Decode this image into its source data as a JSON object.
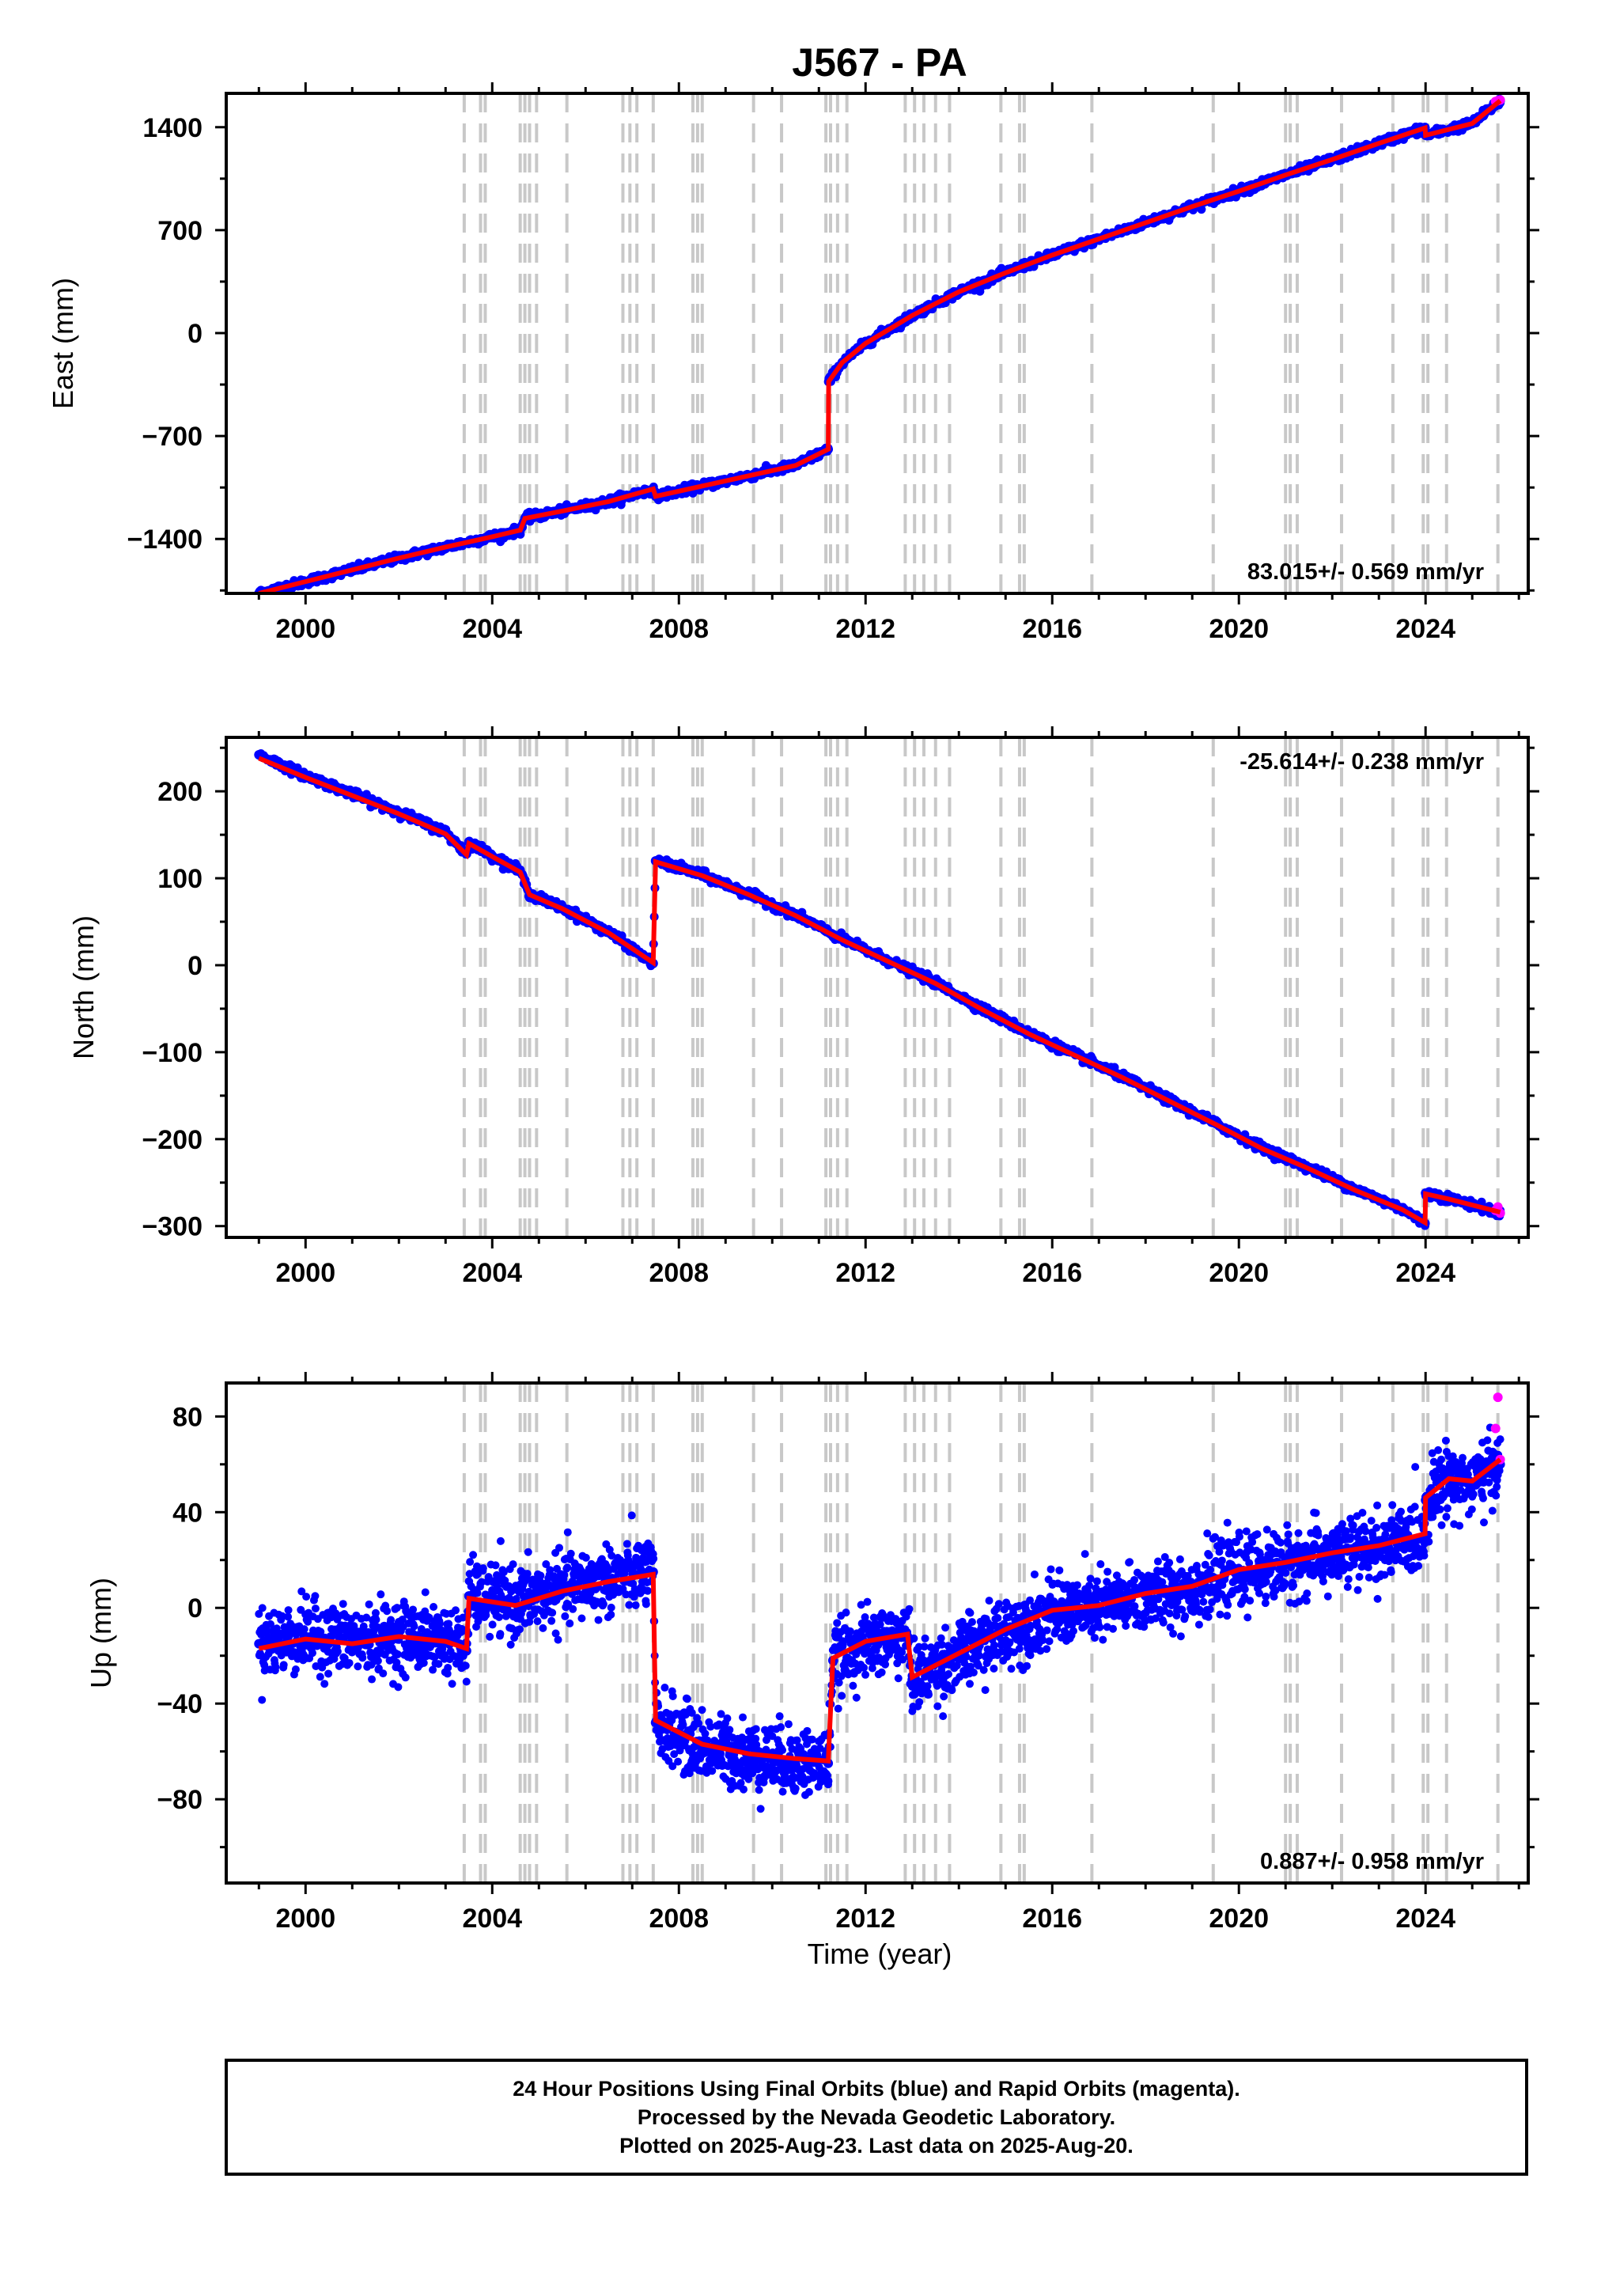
{
  "title": "J567 - PA",
  "xlabel": "Time (year)",
  "footer": {
    "line1": "24 Hour Positions Using Final Orbits (blue) and Rapid Orbits (magenta).",
    "line2": "Processed by the Nevada Geodetic Laboratory.",
    "line3": "Plotted on 2025-Aug-23. Last data on 2025-Aug-20."
  },
  "colors": {
    "final_orbits": "#0000ff",
    "rapid_orbits": "#ff00ff",
    "model": "#ff0000",
    "event_lines": "#c8c8c8"
  },
  "chart_data": [
    {
      "type": "scatter",
      "panel": "east",
      "ylabel": "East (mm)",
      "rate_label": "83.015+/- 0.569 mm/yr",
      "rate_position": "bottom-right",
      "xlim": [
        1998.3,
        2026.2
      ],
      "ylim": [
        -1770,
        1630
      ],
      "xticks": [
        2000,
        2004,
        2008,
        2012,
        2016,
        2020,
        2024
      ],
      "yticks": [
        -1400,
        -700,
        0,
        700,
        1400
      ],
      "ytick_labels": [
        "−1400",
        "−700",
        "0",
        "700",
        "1400"
      ],
      "series": [
        {
          "name": "",
          "color": "#0000ff",
          "x": [
            1999.0,
            2000.0,
            2001.0,
            2002.0,
            2003.0,
            2004.0,
            2004.6,
            2004.7,
            2005.5,
            2006.5,
            2007.45,
            2007.5,
            2008.5,
            2009.5,
            2010.5,
            2011.2,
            2011.21,
            2011.5,
            2012.0,
            2013.0,
            2014.0,
            2015.0,
            2016.0,
            2017.0,
            2018.0,
            2019.0,
            2020.0,
            2021.0,
            2022.0,
            2023.0,
            2023.99,
            2024.0,
            2025.0,
            2025.6
          ],
          "y": [
            -1770,
            -1690,
            -1610,
            -1530,
            -1455,
            -1385,
            -1340,
            -1260,
            -1210,
            -1145,
            -1060,
            -1110,
            -1040,
            -970,
            -900,
            -790,
            -330,
            -200,
            -70,
            120,
            280,
            410,
            530,
            640,
            750,
            860,
            965,
            1075,
            1180,
            1290,
            1395,
            1345,
            1425,
            1580
          ]
        },
        {
          "name": "",
          "color": "#ff00ff",
          "x": [
            2025.5,
            2025.55,
            2025.6
          ],
          "y": [
            1575,
            1580,
            1585
          ]
        }
      ],
      "model_line": {
        "color": "#ff0000",
        "x": [
          1999.0,
          2000.0,
          2001.0,
          2002.0,
          2003.0,
          2004.0,
          2004.6,
          2004.7,
          2005.5,
          2006.5,
          2007.45,
          2007.5,
          2008.5,
          2009.5,
          2010.5,
          2011.2,
          2011.21,
          2011.5,
          2012.0,
          2013.0,
          2014.0,
          2015.0,
          2016.0,
          2017.0,
          2018.0,
          2019.0,
          2020.0,
          2021.0,
          2022.0,
          2023.0,
          2023.99,
          2024.0,
          2025.0,
          2025.6
        ],
        "y": [
          -1770,
          -1690,
          -1610,
          -1530,
          -1455,
          -1385,
          -1340,
          -1260,
          -1210,
          -1145,
          -1060,
          -1110,
          -1040,
          -970,
          -900,
          -790,
          -330,
          -200,
          -70,
          120,
          280,
          410,
          530,
          640,
          750,
          860,
          965,
          1075,
          1180,
          1290,
          1395,
          1345,
          1425,
          1580
        ]
      }
    },
    {
      "type": "scatter",
      "panel": "north",
      "ylabel": "North (mm)",
      "rate_label": "-25.614+/- 0.238 mm/yr",
      "rate_position": "top-right",
      "xlim": [
        1998.3,
        2026.2
      ],
      "ylim": [
        -313,
        262
      ],
      "xticks": [
        2000,
        2004,
        2008,
        2012,
        2016,
        2020,
        2024
      ],
      "yticks": [
        -300,
        -200,
        -100,
        0,
        100,
        200
      ],
      "ytick_labels": [
        "−300",
        "−200",
        "−100",
        "0",
        "100",
        "200"
      ],
      "series": [
        {
          "name": "",
          "color": "#0000ff",
          "x": [
            1999.0,
            2000.0,
            2001.0,
            2002.0,
            2003.0,
            2003.45,
            2003.5,
            2004.0,
            2004.6,
            2004.8,
            2005.5,
            2006.5,
            2007.45,
            2007.5,
            2008.5,
            2009.5,
            2010.5,
            2011.5,
            2012.5,
            2013.5,
            2014.5,
            2015.5,
            2016.5,
            2017.5,
            2018.5,
            2019.5,
            2020.5,
            2021.5,
            2022.5,
            2023.5,
            2023.99,
            2024.0,
            2024.5,
            2025.6
          ],
          "y": [
            242,
            218,
            197,
            176,
            153,
            128,
            142,
            126,
            108,
            82,
            66,
            38,
            2,
            120,
            104,
            82,
            58,
            30,
            5,
            -20,
            -50,
            -78,
            -103,
            -128,
            -155,
            -182,
            -210,
            -233,
            -258,
            -280,
            -297,
            -262,
            -268,
            -285
          ]
        },
        {
          "name": "",
          "color": "#ff00ff",
          "x": [
            2025.5,
            2025.55,
            2025.6
          ],
          "y": [
            -282,
            -278,
            -285
          ]
        }
      ],
      "model_line": {
        "color": "#ff0000",
        "x": [
          1999.0,
          2000.0,
          2001.0,
          2002.0,
          2003.0,
          2003.45,
          2003.5,
          2004.0,
          2004.6,
          2004.8,
          2005.5,
          2006.5,
          2007.45,
          2007.5,
          2008.5,
          2009.5,
          2010.5,
          2011.5,
          2012.5,
          2013.5,
          2014.5,
          2015.5,
          2016.5,
          2017.5,
          2018.5,
          2019.5,
          2020.5,
          2021.5,
          2022.5,
          2023.5,
          2023.99,
          2024.0,
          2024.5,
          2025.6
        ],
        "y": [
          238,
          216,
          195,
          174,
          151,
          127,
          140,
          125,
          107,
          81,
          65,
          37,
          3,
          119,
          103,
          81,
          57,
          29,
          4,
          -21,
          -51,
          -79,
          -104,
          -129,
          -156,
          -183,
          -211,
          -234,
          -259,
          -281,
          -296,
          -263,
          -269,
          -284
        ]
      }
    },
    {
      "type": "scatter",
      "panel": "up",
      "ylabel": "Up (mm)",
      "rate_label": "0.887+/- 0.958 mm/yr",
      "rate_position": "bottom-right",
      "xlim": [
        1998.3,
        2026.2
      ],
      "ylim": [
        -115,
        94
      ],
      "xticks": [
        2000,
        2004,
        2008,
        2012,
        2016,
        2020,
        2024
      ],
      "yticks": [
        -80,
        -40,
        0,
        40,
        80
      ],
      "ytick_labels": [
        "−80",
        "−40",
        "0",
        "40",
        "80"
      ],
      "series": [
        {
          "name": "",
          "color": "#0000ff",
          "x": [
            1999.0,
            2000.0,
            2001.0,
            2002.0,
            2003.0,
            2003.45,
            2003.5,
            2004.5,
            2005.5,
            2006.5,
            2007.45,
            2007.5,
            2008.5,
            2009.5,
            2010.5,
            2011.2,
            2011.3,
            2012.0,
            2012.9,
            2013.0,
            2014.0,
            2015.0,
            2016.0,
            2017.0,
            2018.0,
            2019.0,
            2020.0,
            2021.0,
            2022.0,
            2023.0,
            2023.99,
            2024.0,
            2024.5,
            2025.0,
            2025.6
          ],
          "y": [
            -15,
            -12,
            -14,
            -12,
            -13,
            -18,
            5,
            2,
            8,
            12,
            15,
            -48,
            -58,
            -62,
            -64,
            -65,
            -22,
            -15,
            -12,
            -30,
            -20,
            -10,
            -2,
            0,
            5,
            8,
            15,
            18,
            22,
            25,
            30,
            45,
            55,
            52,
            60
          ]
        },
        {
          "name": "",
          "color": "#ff00ff",
          "x": [
            2025.5,
            2025.55,
            2025.6
          ],
          "y": [
            75,
            88,
            62
          ]
        }
      ],
      "model_line": {
        "color": "#ff0000",
        "x": [
          1999.0,
          2000.0,
          2001.0,
          2002.0,
          2003.0,
          2003.45,
          2003.5,
          2004.5,
          2005.5,
          2006.5,
          2007.45,
          2007.5,
          2008.5,
          2009.5,
          2010.5,
          2011.2,
          2011.3,
          2012.0,
          2012.9,
          2013.0,
          2014.0,
          2015.0,
          2016.0,
          2017.0,
          2018.0,
          2019.0,
          2020.0,
          2021.0,
          2022.0,
          2023.0,
          2023.99,
          2024.0,
          2024.5,
          2025.0,
          2025.6
        ],
        "y": [
          -17,
          -13,
          -15,
          -12,
          -14,
          -17,
          4,
          1,
          7,
          11,
          14,
          -47,
          -57,
          -61,
          -63,
          -64,
          -21,
          -14,
          -11,
          -29,
          -19,
          -9,
          -1,
          1,
          6,
          9,
          16,
          19,
          23,
          26,
          31,
          46,
          54,
          53,
          62
        ]
      }
    }
  ],
  "event_lines_x": [
    2003.4,
    2003.75,
    2003.85,
    2004.6,
    2004.7,
    2004.8,
    2004.95,
    2005.6,
    2006.8,
    2006.95,
    2007.1,
    2007.45,
    2008.3,
    2008.4,
    2008.5,
    2009.6,
    2010.2,
    2011.15,
    2011.25,
    2011.4,
    2011.6,
    2012.85,
    2013.05,
    2013.25,
    2013.5,
    2013.8,
    2014.9,
    2015.3,
    2015.4,
    2016.85,
    2019.45,
    2021.0,
    2021.1,
    2021.25,
    2022.2,
    2023.3,
    2023.95,
    2024.05,
    2024.45,
    2025.55
  ]
}
